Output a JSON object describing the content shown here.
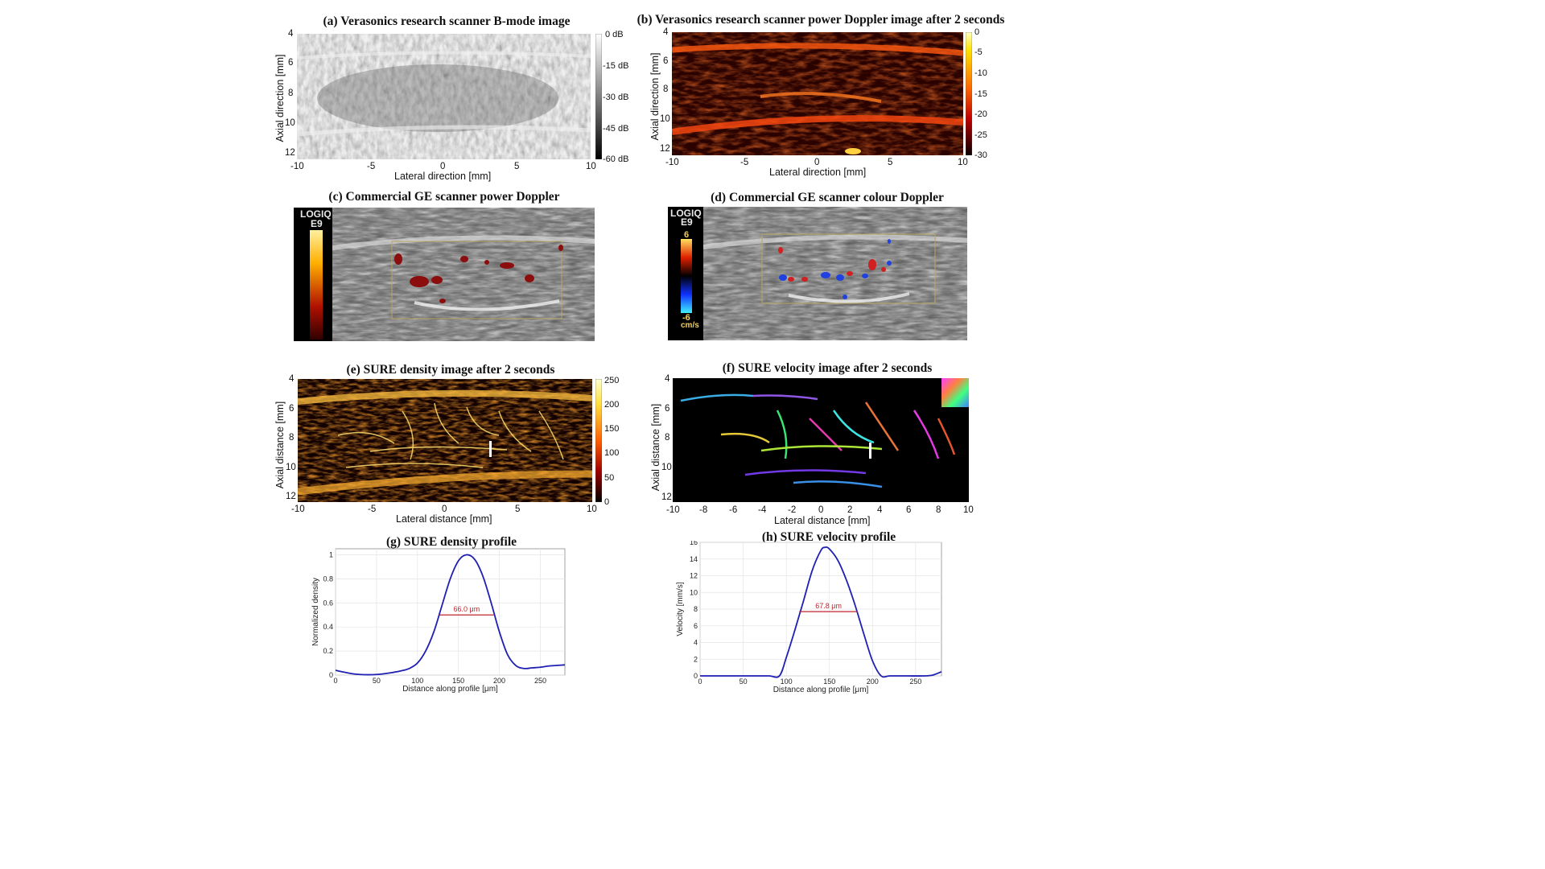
{
  "figure": {
    "panel_a": {
      "title": "(a) Verasonics research scanner B-mode image",
      "xlabel": "Lateral direction [mm]",
      "ylabel": "Axial direction [mm]",
      "xticks": [
        "-10",
        "-5",
        "0",
        "5",
        "10"
      ],
      "yticks": [
        "4",
        "6",
        "8",
        "10",
        "12"
      ],
      "colorbar": [
        "0 dB",
        "-15 dB",
        "-30 dB",
        "-45 dB",
        "-60 dB"
      ]
    },
    "panel_b": {
      "title": "(b) Verasonics research scanner power Doppler image after 2 seconds",
      "xlabel": "Lateral direction [mm]",
      "ylabel": "Axial direction [mm]",
      "xticks": [
        "-10",
        "-5",
        "0",
        "5",
        "10"
      ],
      "yticks": [
        "4",
        "6",
        "8",
        "10",
        "12"
      ],
      "colorbar": [
        "0",
        "-5",
        "-10",
        "-15",
        "-20",
        "-25",
        "-30"
      ]
    },
    "panel_c": {
      "title": "(c) Commercial GE scanner power Doppler",
      "brand_line1": "LOGIQ",
      "brand_line2": "E9"
    },
    "panel_d": {
      "title": "(d) Commercial GE scanner colour Doppler",
      "brand_line1": "LOGIQ",
      "brand_line2": "E9",
      "scale_max": "6",
      "scale_min": "-6",
      "scale_unit": "cm/s"
    },
    "panel_e": {
      "title": "(e) SURE density image after 2 seconds",
      "xlabel": "Lateral distance [mm]",
      "ylabel": "Axial distance [mm]",
      "xticks": [
        "-10",
        "-5",
        "0",
        "5",
        "10"
      ],
      "yticks": [
        "4",
        "6",
        "8",
        "10",
        "12"
      ],
      "colorbar": [
        "250",
        "200",
        "150",
        "100",
        "50",
        "0"
      ]
    },
    "panel_f": {
      "title": "(f) SURE velocity image after 2 seconds",
      "xlabel": "Lateral distance [mm]",
      "ylabel": "Axial distance [mm]",
      "xticks": [
        "-10",
        "-8",
        "-6",
        "-4",
        "-2",
        "0",
        "2",
        "4",
        "6",
        "8",
        "10"
      ],
      "yticks": [
        "4",
        "6",
        "8",
        "10",
        "12"
      ]
    }
  },
  "chart_data": [
    {
      "type": "line",
      "title": "(g) SURE density profile",
      "xlabel": "Distance along profile [μm]",
      "ylabel": "Normalized density",
      "xlim": [
        0,
        280
      ],
      "ylim": [
        0,
        1.05
      ],
      "xticks": [
        0,
        50,
        100,
        150,
        200,
        250
      ],
      "yticks": [
        0,
        0.2,
        0.4,
        0.6,
        0.8,
        1
      ],
      "ytick_labels": [
        "0",
        "0.2",
        "0.4",
        "0.6",
        "0.8",
        "1"
      ],
      "line_color": "#1f1fb4",
      "annotation_color": "#c0262d",
      "annotation": "66.0 μm",
      "fwhm": {
        "x1": 127,
        "x2": 193,
        "y": 0.5
      },
      "x": [
        0,
        10,
        20,
        30,
        40,
        50,
        60,
        70,
        80,
        90,
        100,
        110,
        120,
        130,
        140,
        150,
        160,
        170,
        180,
        190,
        200,
        210,
        220,
        230,
        240,
        250,
        260,
        270,
        280
      ],
      "y": [
        0.04,
        0.025,
        0.012,
        0.005,
        0.003,
        0.005,
        0.012,
        0.022,
        0.035,
        0.055,
        0.1,
        0.2,
        0.36,
        0.58,
        0.8,
        0.95,
        1.0,
        0.96,
        0.82,
        0.6,
        0.36,
        0.17,
        0.08,
        0.055,
        0.06,
        0.065,
        0.075,
        0.08,
        0.085
      ]
    },
    {
      "type": "line",
      "title": "(h) SURE velocity profile",
      "xlabel": "Distance along profile [μm]",
      "ylabel": "Velocity [mm/s]",
      "xlim": [
        0,
        280
      ],
      "ylim": [
        0,
        16
      ],
      "xticks": [
        0,
        50,
        100,
        150,
        200,
        250
      ],
      "yticks": [
        0,
        2,
        4,
        6,
        8,
        10,
        12,
        14,
        16
      ],
      "ytick_labels": [
        "0",
        "2",
        "4",
        "6",
        "8",
        "10",
        "12",
        "14",
        "16"
      ],
      "line_color": "#1f1fb4",
      "annotation_color": "#c0262d",
      "annotation": "67.8 μm",
      "fwhm": {
        "x1": 115,
        "x2": 183,
        "y": 7.7
      },
      "x": [
        0,
        20,
        40,
        60,
        80,
        92,
        100,
        110,
        120,
        130,
        140,
        145,
        150,
        160,
        170,
        180,
        190,
        200,
        210,
        220,
        240,
        260,
        270,
        280
      ],
      "y": [
        0,
        0,
        0,
        0,
        0,
        0,
        2.2,
        5.5,
        9.0,
        12.6,
        15.0,
        15.4,
        15.2,
        13.8,
        11.4,
        8.4,
        5.0,
        1.8,
        0,
        0,
        0,
        0,
        0.1,
        0.5
      ]
    }
  ]
}
